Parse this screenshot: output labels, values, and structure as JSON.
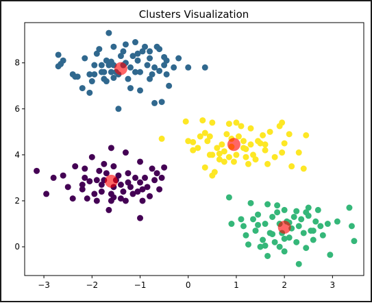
{
  "chart_data": {
    "type": "scatter",
    "title": "Clusters Visualization",
    "xlabel": "",
    "ylabel": "",
    "xlim": [
      -3.4,
      3.65
    ],
    "ylim": [
      -1.25,
      9.75
    ],
    "xticks": [
      -3,
      -2,
      -1,
      0,
      1,
      2,
      3
    ],
    "yticks": [
      0,
      2,
      4,
      6,
      8
    ],
    "grid": false,
    "legend": "none",
    "series": [
      {
        "color": "#30688e",
        "points": [
          [
            -2.7,
            8.35
          ],
          [
            -2.65,
            7.95
          ],
          [
            -2.6,
            8.1
          ],
          [
            -2.4,
            7.5
          ],
          [
            -2.35,
            7.4
          ],
          [
            -2.3,
            7.4
          ],
          [
            -2.2,
            6.9
          ],
          [
            -2.15,
            8.2
          ],
          [
            -2.05,
            7.5
          ],
          [
            -2.0,
            7.2
          ],
          [
            -1.95,
            7.5
          ],
          [
            -1.9,
            8.4
          ],
          [
            -1.85,
            8.6
          ],
          [
            -1.8,
            7.9
          ],
          [
            -1.8,
            7.6
          ],
          [
            -1.75,
            7.6
          ],
          [
            -1.7,
            8.1
          ],
          [
            -1.7,
            7.2
          ],
          [
            -1.65,
            7.9
          ],
          [
            -1.6,
            7.6
          ],
          [
            -1.55,
            7.9
          ],
          [
            -1.5,
            7.6
          ],
          [
            -1.45,
            7.5
          ],
          [
            -1.45,
            6.0
          ],
          [
            -1.4,
            8.3
          ],
          [
            -1.35,
            8.5
          ],
          [
            -1.3,
            8.0
          ],
          [
            -1.25,
            7.3
          ],
          [
            -1.2,
            6.9
          ],
          [
            -1.2,
            7.8
          ],
          [
            -1.15,
            8.3
          ],
          [
            -1.1,
            7.6
          ],
          [
            -1.05,
            8.1
          ],
          [
            -1.0,
            7.6
          ],
          [
            -1.0,
            6.8
          ],
          [
            -0.95,
            8.5
          ],
          [
            -0.85,
            7.9
          ],
          [
            -0.8,
            8.5
          ],
          [
            -0.8,
            8.2
          ],
          [
            -0.75,
            7.5
          ],
          [
            -0.7,
            7.8
          ],
          [
            -0.7,
            6.25
          ],
          [
            -0.65,
            8.7
          ],
          [
            -0.6,
            8.6
          ],
          [
            -0.6,
            7.65
          ],
          [
            -0.55,
            6.3
          ],
          [
            -0.5,
            7.9
          ],
          [
            -0.45,
            8.1
          ],
          [
            -0.4,
            7.0
          ],
          [
            -0.3,
            7.8
          ],
          [
            -0.2,
            8.2
          ],
          [
            -1.65,
            9.3
          ],
          [
            -1.55,
            8.7
          ],
          [
            -2.7,
            7.85
          ],
          [
            -2.05,
            6.7
          ],
          [
            -1.75,
            7.3
          ],
          [
            -1.55,
            7.35
          ],
          [
            -1.3,
            8.8
          ],
          [
            -1.1,
            8.9
          ],
          [
            -0.9,
            8.7
          ],
          [
            0.0,
            7.8
          ],
          [
            0.35,
            7.8
          ],
          [
            -0.45,
            7.5
          ],
          [
            -0.5,
            8.25
          ],
          [
            -1.05,
            8.4
          ],
          [
            -1.35,
            7.9
          ],
          [
            -1.95,
            7.9
          ],
          [
            -1.6,
            8.05
          ],
          [
            -0.8,
            7.3
          ]
        ]
      },
      {
        "color": "#fde725",
        "points": [
          [
            -0.55,
            4.7
          ],
          [
            -0.05,
            5.45
          ],
          [
            0.0,
            4.6
          ],
          [
            0.1,
            4.55
          ],
          [
            0.1,
            4.2
          ],
          [
            0.2,
            4.3
          ],
          [
            0.25,
            4.8
          ],
          [
            0.3,
            5.5
          ],
          [
            0.35,
            4.95
          ],
          [
            0.35,
            3.45
          ],
          [
            0.4,
            4.6
          ],
          [
            0.45,
            4.8
          ],
          [
            0.5,
            5.4
          ],
          [
            0.5,
            4.0
          ],
          [
            0.5,
            3.1
          ],
          [
            0.55,
            3.25
          ],
          [
            0.6,
            4.3
          ],
          [
            0.65,
            3.8
          ],
          [
            0.7,
            4.45
          ],
          [
            0.75,
            4.15
          ],
          [
            0.75,
            3.7
          ],
          [
            0.8,
            4.9
          ],
          [
            0.85,
            5.35
          ],
          [
            0.85,
            3.9
          ],
          [
            0.9,
            4.7
          ],
          [
            0.9,
            4.35
          ],
          [
            0.95,
            3.7
          ],
          [
            1.0,
            4.0
          ],
          [
            1.0,
            5.4
          ],
          [
            1.05,
            4.8
          ],
          [
            1.1,
            5.25
          ],
          [
            1.15,
            4.6
          ],
          [
            1.15,
            4.3
          ],
          [
            1.2,
            3.9
          ],
          [
            1.25,
            3.6
          ],
          [
            1.3,
            5.15
          ],
          [
            1.3,
            4.45
          ],
          [
            1.35,
            4.0
          ],
          [
            1.4,
            3.8
          ],
          [
            1.45,
            4.6
          ],
          [
            1.5,
            4.5
          ],
          [
            1.55,
            4.85
          ],
          [
            1.6,
            4.2
          ],
          [
            1.65,
            3.6
          ],
          [
            1.7,
            5.0
          ],
          [
            1.8,
            3.9
          ],
          [
            1.9,
            5.25
          ],
          [
            1.95,
            4.1
          ],
          [
            2.0,
            4.5
          ],
          [
            2.1,
            4.9
          ],
          [
            2.15,
            3.5
          ],
          [
            2.3,
            4.1
          ],
          [
            2.4,
            3.4
          ],
          [
            2.45,
            4.85
          ],
          [
            1.95,
            5.4
          ],
          [
            0.45,
            4.0
          ],
          [
            0.65,
            4.05
          ],
          [
            1.2,
            4.25
          ],
          [
            1.6,
            4.45
          ]
        ]
      },
      {
        "color": "#440154",
        "points": [
          [
            -3.15,
            3.3
          ],
          [
            -2.95,
            2.3
          ],
          [
            -2.8,
            3.0
          ],
          [
            -2.6,
            3.1
          ],
          [
            -2.5,
            2.6
          ],
          [
            -2.35,
            3.5
          ],
          [
            -2.2,
            2.7
          ],
          [
            -2.2,
            2.5
          ],
          [
            -2.15,
            3.4
          ],
          [
            -2.1,
            2.1
          ],
          [
            -2.05,
            2.85
          ],
          [
            -2.0,
            3.9
          ],
          [
            -1.95,
            2.3
          ],
          [
            -1.9,
            2.0
          ],
          [
            -1.85,
            3.3
          ],
          [
            -1.8,
            2.7
          ],
          [
            -1.8,
            2.4
          ],
          [
            -1.75,
            2.9
          ],
          [
            -1.7,
            3.2
          ],
          [
            -1.65,
            1.6
          ],
          [
            -1.6,
            2.3
          ],
          [
            -1.6,
            2.0
          ],
          [
            -1.55,
            3.5
          ],
          [
            -1.55,
            2.6
          ],
          [
            -1.5,
            2.9
          ],
          [
            -1.45,
            3.1
          ],
          [
            -1.4,
            2.7
          ],
          [
            -1.35,
            2.4
          ],
          [
            -1.3,
            2.0
          ],
          [
            -1.3,
            4.1
          ],
          [
            -1.25,
            3.2
          ],
          [
            -1.2,
            2.6
          ],
          [
            -1.15,
            2.3
          ],
          [
            -1.1,
            3.0
          ],
          [
            -1.05,
            2.4
          ],
          [
            -1.0,
            3.7
          ],
          [
            -1.0,
            2.8
          ],
          [
            -0.95,
            2.0
          ],
          [
            -0.9,
            3.0
          ],
          [
            -0.85,
            2.6
          ],
          [
            -0.8,
            2.2
          ],
          [
            -0.75,
            3.4
          ],
          [
            -0.7,
            2.9
          ],
          [
            -0.65,
            3.2
          ],
          [
            -0.6,
            2.5
          ],
          [
            -0.55,
            3.0
          ],
          [
            -0.5,
            3.45
          ],
          [
            -1.6,
            4.3
          ],
          [
            -1.0,
            1.25
          ],
          [
            -1.4,
            2.1
          ],
          [
            -1.9,
            2.9
          ],
          [
            -2.4,
            2.1
          ],
          [
            -1.75,
            3.6
          ],
          [
            -1.25,
            2.8
          ],
          [
            -2.15,
            3.0
          ],
          [
            -1.55,
            2.15
          ],
          [
            -0.95,
            2.5
          ]
        ]
      },
      {
        "color": "#35b779",
        "points": [
          [
            0.85,
            2.15
          ],
          [
            0.9,
            1.0
          ],
          [
            1.1,
            1.2
          ],
          [
            1.15,
            0.9
          ],
          [
            1.2,
            0.5
          ],
          [
            1.25,
            0.1
          ],
          [
            1.3,
            1.9
          ],
          [
            1.35,
            1.2
          ],
          [
            1.4,
            0.7
          ],
          [
            1.45,
            1.4
          ],
          [
            1.5,
            0.0
          ],
          [
            1.55,
            0.3
          ],
          [
            1.6,
            1.0
          ],
          [
            1.65,
            1.85
          ],
          [
            1.65,
            -0.4
          ],
          [
            1.7,
            0.6
          ],
          [
            1.75,
            1.3
          ],
          [
            1.8,
            0.2
          ],
          [
            1.85,
            1.5
          ],
          [
            1.9,
            0.0
          ],
          [
            1.9,
            1.0
          ],
          [
            1.95,
            0.6
          ],
          [
            2.0,
            1.6
          ],
          [
            2.0,
            -0.2
          ],
          [
            2.05,
            1.1
          ],
          [
            2.1,
            0.4
          ],
          [
            2.15,
            0.8
          ],
          [
            2.2,
            1.3
          ],
          [
            2.25,
            0.2
          ],
          [
            2.3,
            0.9
          ],
          [
            2.3,
            -0.75
          ],
          [
            2.35,
            1.2
          ],
          [
            2.4,
            0.6
          ],
          [
            2.45,
            1.5
          ],
          [
            2.5,
            1.35
          ],
          [
            2.55,
            0.7
          ],
          [
            2.6,
            0.3
          ],
          [
            2.65,
            1.1
          ],
          [
            2.7,
            1.6
          ],
          [
            2.75,
            0.9
          ],
          [
            2.8,
            0.5
          ],
          [
            2.9,
            1.0
          ],
          [
            2.95,
            -0.35
          ],
          [
            3.1,
            1.1
          ],
          [
            3.35,
            1.7
          ],
          [
            3.4,
            0.9
          ],
          [
            3.45,
            0.25
          ],
          [
            2.45,
            -0.05
          ],
          [
            2.5,
            1.7
          ],
          [
            1.85,
            1.8
          ],
          [
            1.6,
            0.05
          ],
          [
            2.1,
            1.05
          ],
          [
            1.45,
            0.95
          ],
          [
            2.6,
            0.7
          ],
          [
            2.0,
            0.35
          ],
          [
            1.75,
            0.55
          ],
          [
            2.25,
            1.55
          ]
        ]
      }
    ],
    "centers": {
      "color": "#ff0000",
      "points": [
        [
          -1.4,
          7.75
        ],
        [
          0.95,
          4.45
        ],
        [
          -1.6,
          2.85
        ],
        [
          2.0,
          0.85
        ]
      ]
    }
  }
}
